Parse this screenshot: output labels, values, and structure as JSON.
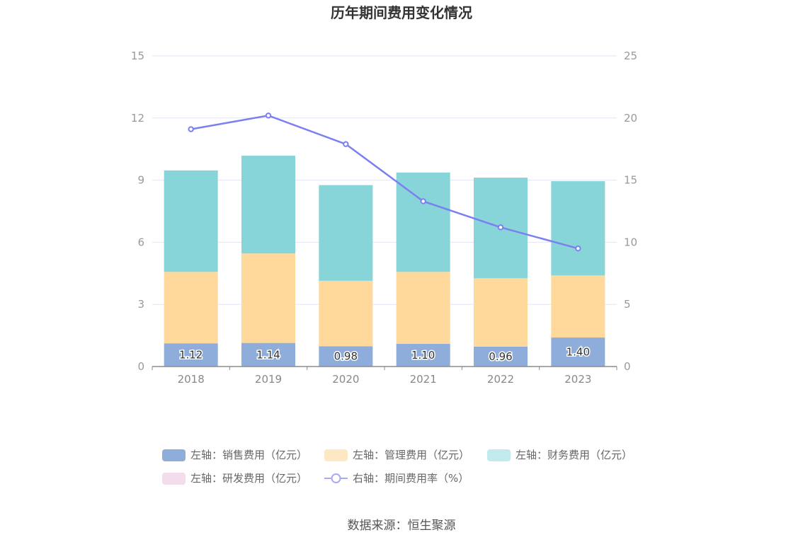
{
  "source_text": "数据来源：恒生聚源",
  "chart_data": {
    "type": "bar",
    "title": "历年期间费用变化情况",
    "categories": [
      "2018",
      "2019",
      "2020",
      "2021",
      "2022",
      "2023"
    ],
    "left_axis": {
      "min": 0,
      "max": 15,
      "ticks": [
        0,
        3,
        6,
        9,
        12,
        15
      ]
    },
    "right_axis": {
      "min": 0,
      "max": 25,
      "ticks": [
        0,
        5,
        10,
        15,
        20,
        25
      ]
    },
    "grid": true,
    "legend_position": "bottom",
    "series": [
      {
        "name": "左轴：销售费用（亿元）",
        "type": "bar",
        "axis": "left",
        "color": "#8eaddb",
        "values": [
          1.12,
          1.14,
          0.98,
          1.1,
          0.96,
          1.4
        ],
        "labels": [
          "1.12",
          "1.14",
          "0.98",
          "1.10",
          "0.96",
          "1.40"
        ]
      },
      {
        "name": "左轴：管理费用（亿元）",
        "type": "bar",
        "axis": "left",
        "color": "#fed99b",
        "values": [
          3.45,
          4.32,
          3.16,
          3.47,
          3.3,
          3.0
        ]
      },
      {
        "name": "左轴：财务费用（亿元）",
        "type": "bar",
        "axis": "left",
        "color": "#87d5d9",
        "values": [
          4.9,
          4.72,
          4.62,
          4.8,
          4.86,
          4.55
        ]
      },
      {
        "name": "左轴：研发费用（亿元）",
        "type": "bar",
        "axis": "left",
        "color": "#f3dcec",
        "values": [
          0,
          0,
          0,
          0,
          0,
          0
        ]
      },
      {
        "name": "右轴：期间费用率（%）",
        "type": "line",
        "axis": "right",
        "color": "#7b7ff0",
        "values": [
          19.1,
          20.2,
          17.9,
          13.3,
          11.2,
          9.5
        ]
      }
    ]
  }
}
